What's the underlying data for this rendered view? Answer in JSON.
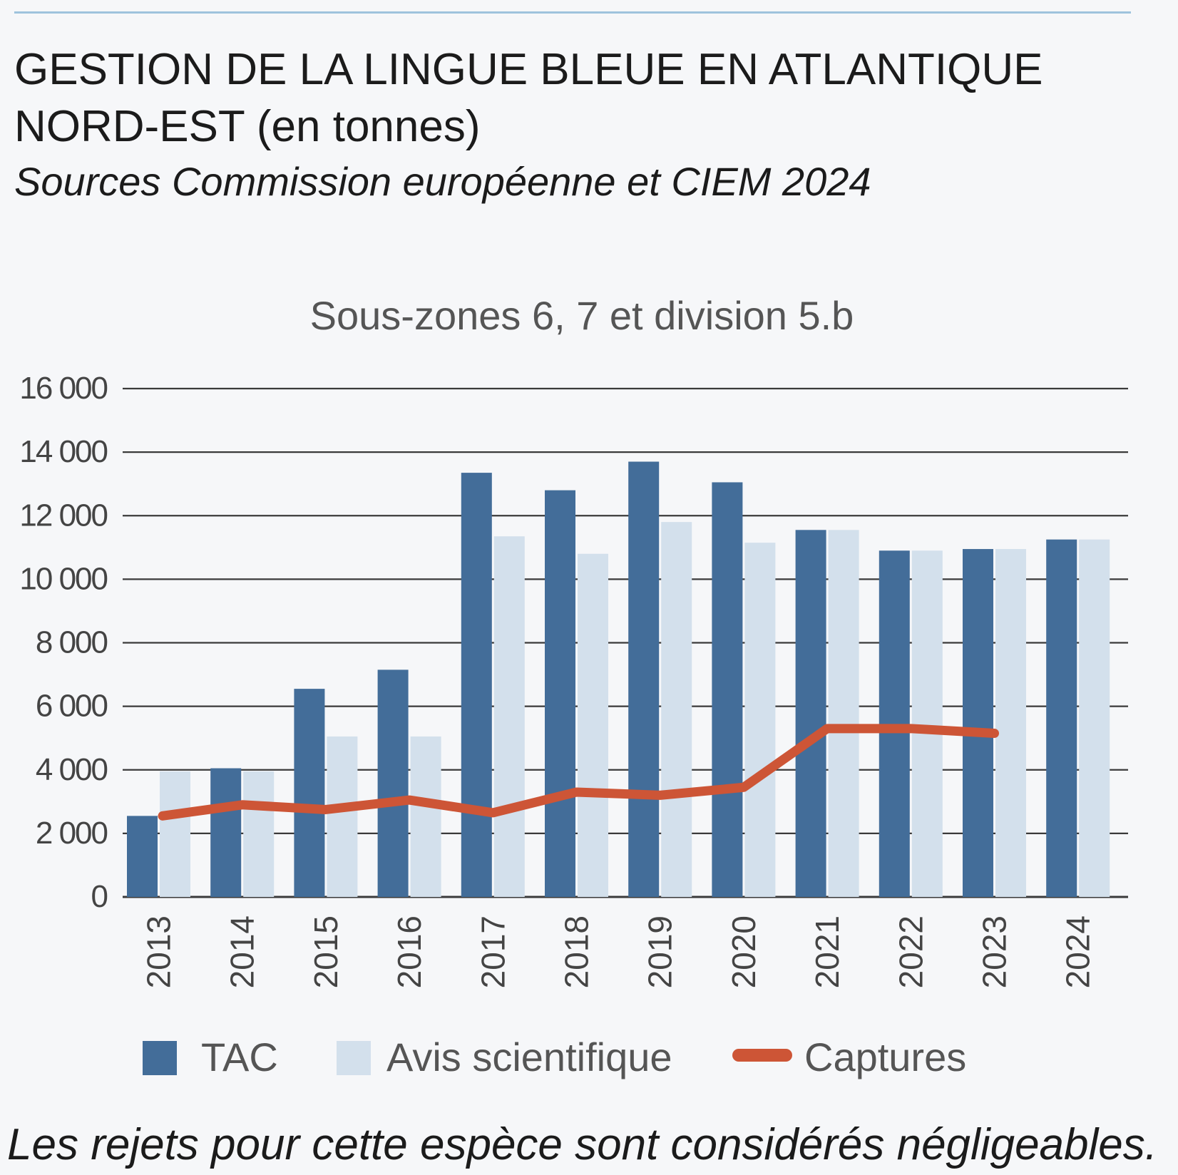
{
  "header": {
    "title_line1": "GESTION DE LA LINGUE BLEUE EN ATLANTIQUE",
    "title_line2": "NORD-EST (en tonnes)",
    "source": "Sources Commission européenne et CIEM 2024"
  },
  "footnote": "Les rejets pour cette espèce sont considérés négligeables.",
  "colors": {
    "tac": "#436d99",
    "avis": "#d3e0ec",
    "captures": "#cd5536",
    "grid": "#3a3a3a",
    "axis_text": "#444444"
  },
  "chart_data": {
    "type": "bar",
    "title": "Sous-zones 6, 7 et division 5.b",
    "categories": [
      "2013",
      "2014",
      "2015",
      "2016",
      "2017",
      "2018",
      "2019",
      "2020",
      "2021",
      "2022",
      "2023",
      "2024"
    ],
    "ylim": [
      0,
      16000
    ],
    "yticks": [
      0,
      2000,
      4000,
      6000,
      8000,
      10000,
      12000,
      14000,
      16000
    ],
    "ytick_labels": [
      "0",
      "2 000",
      "4 000",
      "6 000",
      "8 000",
      "10 000",
      "12 000",
      "14 000",
      "16 000"
    ],
    "grid": true,
    "legend_position": "bottom",
    "series": [
      {
        "name": "TAC",
        "type": "bar",
        "values": [
          2550,
          4050,
          6550,
          7150,
          13350,
          12800,
          13700,
          13050,
          11550,
          10900,
          10950,
          11250
        ]
      },
      {
        "name": "Avis scientifique",
        "type": "bar",
        "values": [
          3950,
          3950,
          5050,
          5050,
          11350,
          10800,
          11800,
          11150,
          11550,
          10900,
          10950,
          11250
        ]
      },
      {
        "name": "Captures",
        "type": "line",
        "values": [
          2550,
          2900,
          2750,
          3050,
          2650,
          3300,
          3200,
          3450,
          5300,
          5300,
          5150,
          null
        ]
      }
    ]
  }
}
